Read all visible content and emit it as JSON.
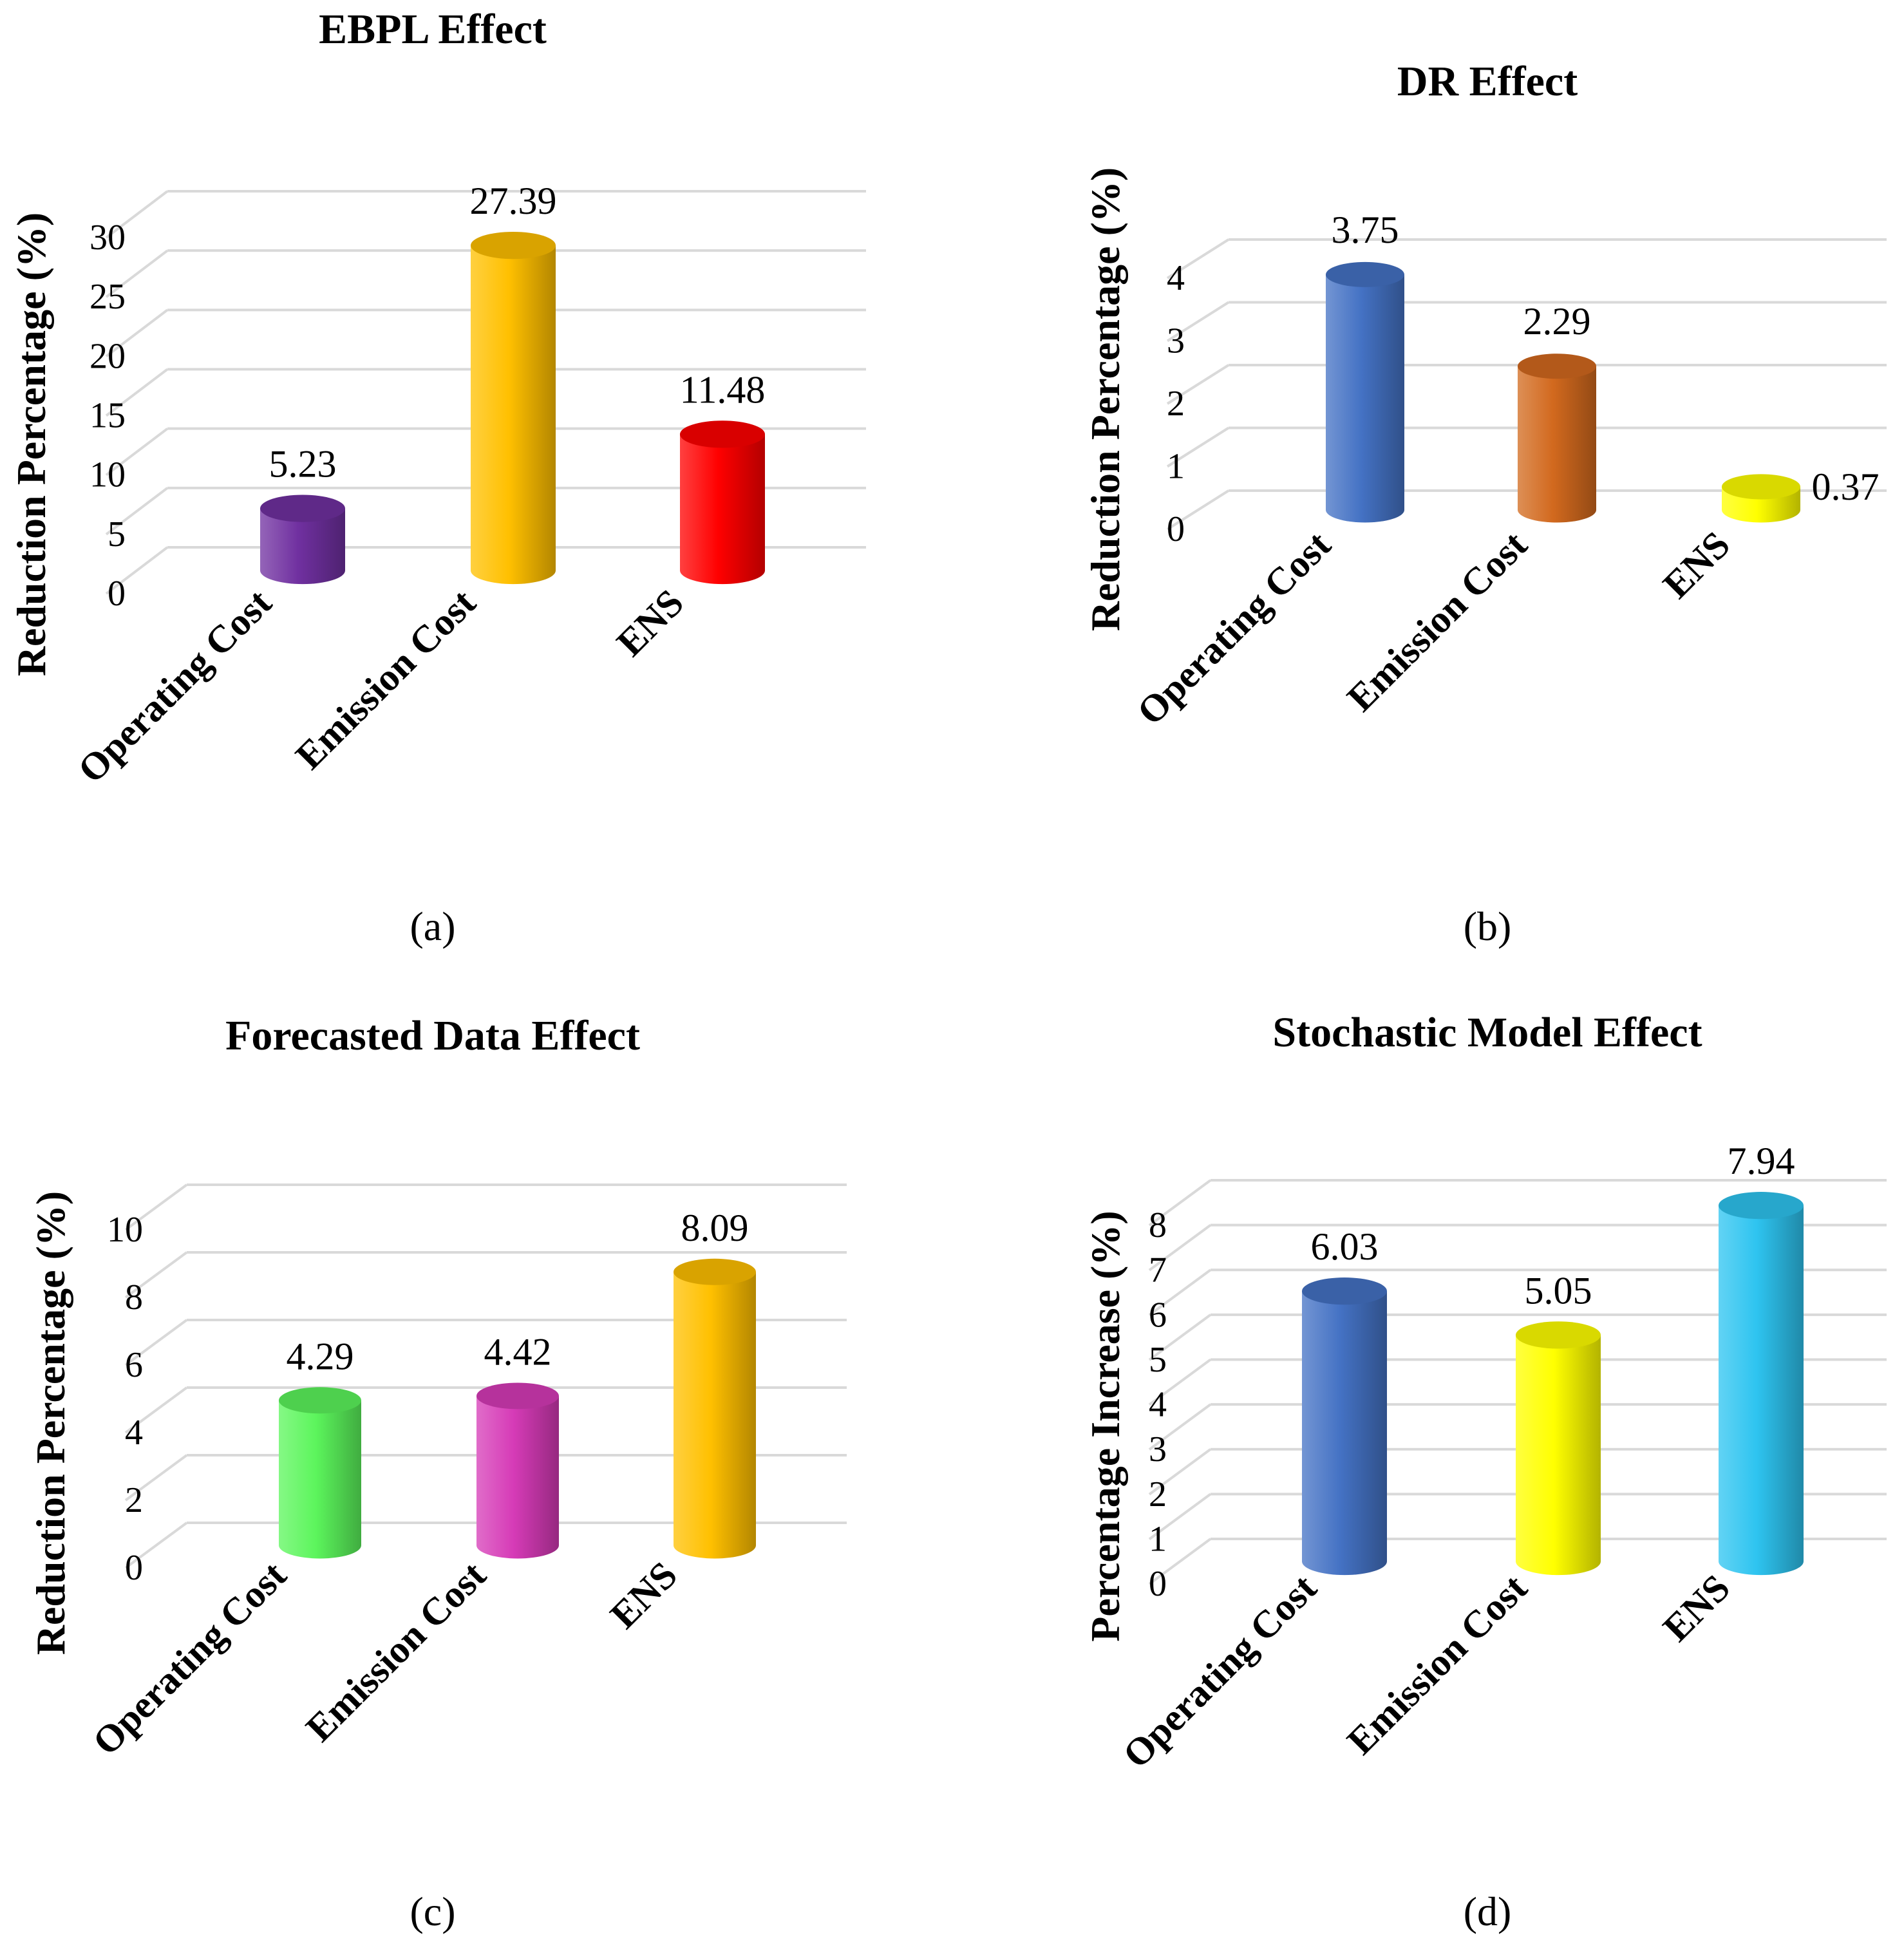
{
  "chart_data": [
    {
      "panel_id": "a",
      "type": "bar",
      "title": "EBPL Effect",
      "caption": "(a)",
      "ylabel": "Reduction Percentage (%)",
      "xlabel": "",
      "categories": [
        "Operating Cost",
        "Emission Cost",
        "ENS"
      ],
      "values": [
        5.23,
        27.39,
        11.48
      ],
      "value_labels": [
        "5.23",
        "27.39",
        "11.48"
      ],
      "colors": [
        "#7030A0",
        "#FFC000",
        "#FF0000"
      ],
      "ylim": [
        0,
        30
      ],
      "yticks": [
        "0",
        "5",
        "10",
        "15",
        "20",
        "25",
        "30"
      ],
      "grid": true,
      "legend": "none"
    },
    {
      "panel_id": "b",
      "type": "bar",
      "title": "DR Effect",
      "caption": "(b)",
      "ylabel": "Reduction Percentage (%)",
      "xlabel": "",
      "categories": [
        "Operating Cost",
        "Emission Cost",
        "ENS"
      ],
      "values": [
        3.75,
        2.29,
        0.37
      ],
      "value_labels": [
        "3.75",
        "2.29",
        "0.37"
      ],
      "colors": [
        "#4472C4",
        "#D2691E",
        "#FFFF00"
      ],
      "ylim": [
        0,
        4
      ],
      "yticks": [
        "0",
        "1",
        "2",
        "3",
        "4"
      ],
      "grid": true,
      "legend": "none"
    },
    {
      "panel_id": "c",
      "type": "bar",
      "title": "Forecasted Data Effect",
      "caption": "(c)",
      "ylabel": "Reduction Percentage (%)",
      "xlabel": "",
      "categories": [
        "Operating Cost",
        "Emission Cost",
        "ENS"
      ],
      "values": [
        4.29,
        4.42,
        8.09
      ],
      "value_labels": [
        "4.29",
        "4.42",
        "8.09"
      ],
      "colors": [
        "#5CF55C",
        "#D63BB7",
        "#FFC000"
      ],
      "ylim": [
        0,
        10
      ],
      "yticks": [
        "0",
        "2",
        "4",
        "6",
        "8",
        "10"
      ],
      "grid": true,
      "legend": "none"
    },
    {
      "panel_id": "d",
      "type": "bar",
      "title": "Stochastic Model Effect",
      "caption": "(d)",
      "ylabel": "Percentage Increase (%)",
      "xlabel": "",
      "categories": [
        "Operating Cost",
        "Emission Cost",
        "ENS"
      ],
      "values": [
        6.03,
        5.05,
        7.94
      ],
      "value_labels": [
        "6.03",
        "5.05",
        "7.94"
      ],
      "colors": [
        "#4472C4",
        "#FFFF00",
        "#2EC4F0"
      ],
      "ylim": [
        0,
        8
      ],
      "yticks": [
        "0",
        "1",
        "2",
        "3",
        "4",
        "5",
        "6",
        "7",
        "8"
      ],
      "grid": true,
      "legend": "none"
    }
  ]
}
